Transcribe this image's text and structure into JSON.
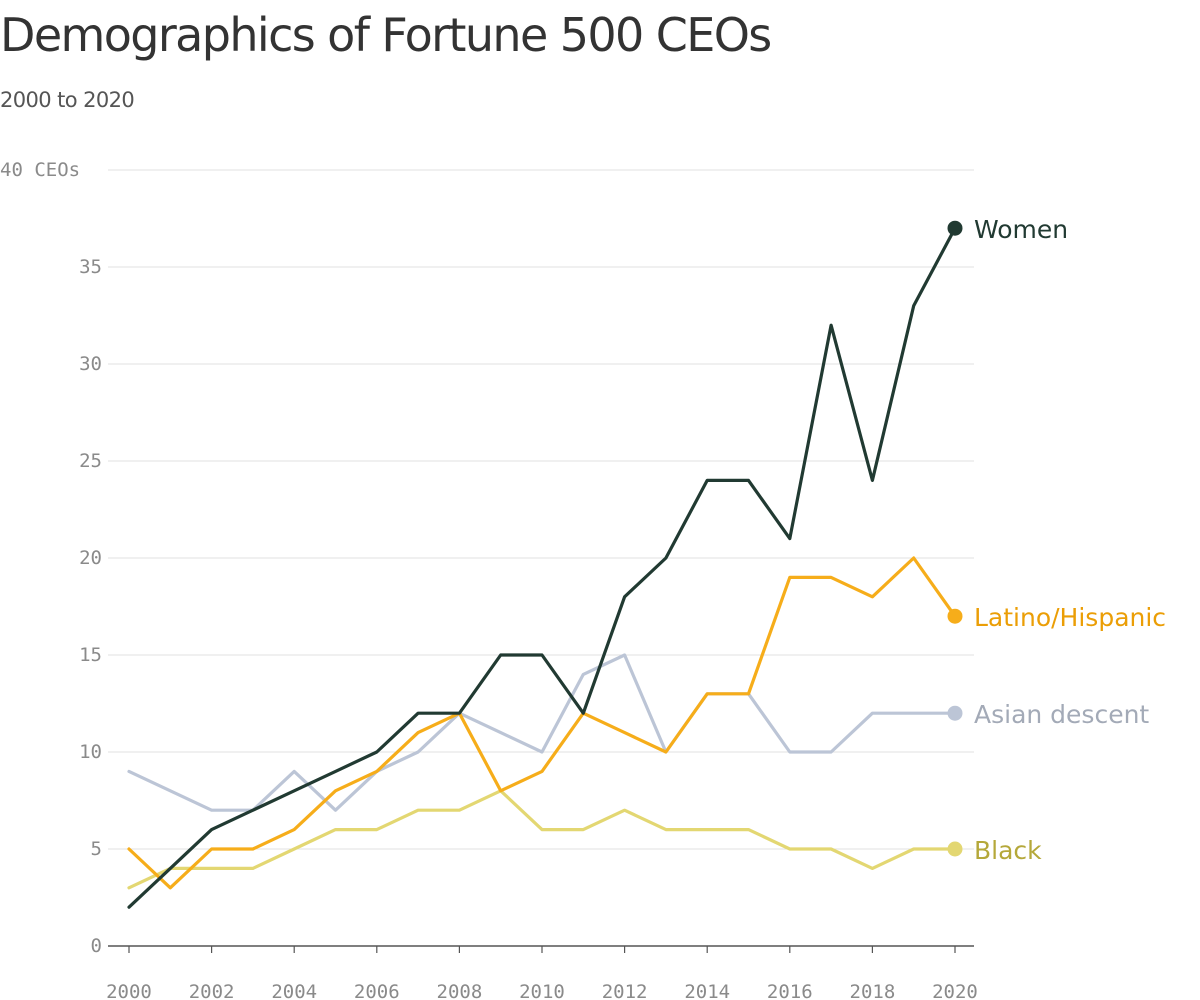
{
  "title": "Demographics of Fortune 500 CEOs",
  "subtitle": "2000 to 2020",
  "chart_data": {
    "type": "line",
    "title": "Demographics of Fortune 500 CEOs",
    "subtitle": "2000 to 2020",
    "xlabel": "",
    "ylabel": "",
    "x": [
      2000,
      2001,
      2002,
      2003,
      2004,
      2005,
      2006,
      2007,
      2008,
      2009,
      2010,
      2011,
      2012,
      2013,
      2014,
      2015,
      2016,
      2017,
      2018,
      2019,
      2020
    ],
    "xlim": [
      2000,
      2020
    ],
    "ylim": [
      0,
      40
    ],
    "x_ticks": [
      2000,
      2002,
      2004,
      2006,
      2008,
      2010,
      2012,
      2014,
      2016,
      2018,
      2020
    ],
    "x_tick_labels": [
      "2000",
      "2002",
      "2004",
      "2006",
      "2008",
      "2010",
      "2012",
      "2014",
      "2016",
      "2018",
      "2020"
    ],
    "y_ticks": [
      0,
      5,
      10,
      15,
      20,
      25,
      30,
      35,
      40
    ],
    "y_tick_labels": [
      "0",
      "5",
      "10",
      "15",
      "20",
      "25",
      "30",
      "35",
      "40 CEOs"
    ],
    "grid": true,
    "legend": "direct labels at line ends",
    "series": [
      {
        "name": "Asian descent",
        "color": "#bcc5d6",
        "label_color": "#a3aab7",
        "values": [
          9,
          8,
          7,
          7,
          9,
          7,
          9,
          10,
          12,
          11,
          10,
          14,
          15,
          10,
          13,
          13,
          10,
          10,
          12,
          12,
          12
        ]
      },
      {
        "name": "Black",
        "color": "#e3d772",
        "label_color": "#b5a83a",
        "values": [
          3,
          4,
          4,
          4,
          5,
          6,
          6,
          7,
          7,
          8,
          6,
          6,
          7,
          6,
          6,
          6,
          5,
          5,
          4,
          5,
          5
        ]
      },
      {
        "name": "Latino/Hispanic",
        "color": "#f6ad1a",
        "label_color": "#eb9e06",
        "values": [
          5,
          3,
          5,
          5,
          6,
          8,
          9,
          11,
          12,
          8,
          9,
          12,
          11,
          10,
          13,
          13,
          19,
          19,
          18,
          20,
          17
        ]
      },
      {
        "name": "Women",
        "color": "#213a32",
        "label_color": "#213a32",
        "values": [
          2,
          4,
          6,
          7,
          8,
          9,
          10,
          12,
          12,
          15,
          15,
          12,
          18,
          20,
          24,
          24,
          21,
          32,
          24,
          33,
          37
        ]
      }
    ]
  }
}
